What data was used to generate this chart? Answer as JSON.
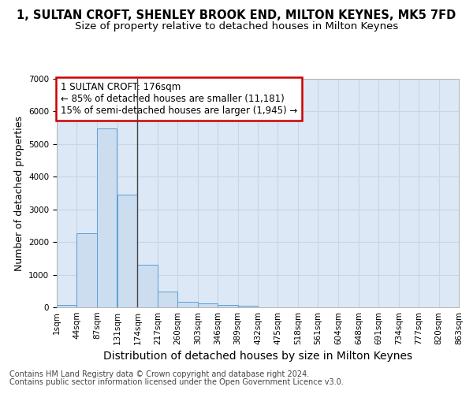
{
  "title": "1, SULTAN CROFT, SHENLEY BROOK END, MILTON KEYNES, MK5 7FD",
  "subtitle": "Size of property relative to detached houses in Milton Keynes",
  "xlabel": "Distribution of detached houses by size in Milton Keynes",
  "ylabel": "Number of detached properties",
  "footnote1": "Contains HM Land Registry data © Crown copyright and database right 2024.",
  "footnote2": "Contains public sector information licensed under the Open Government Licence v3.0.",
  "annotation_line1": "1 SULTAN CROFT: 176sqm",
  "annotation_line2": "← 85% of detached houses are smaller (11,181)",
  "annotation_line3": "15% of semi-detached houses are larger (1,945) →",
  "bin_starts": [
    1,
    44,
    87,
    131,
    174,
    217,
    260,
    303,
    346,
    389,
    432,
    475,
    518,
    561,
    604,
    648,
    691,
    734,
    777,
    820
  ],
  "bin_labels": [
    "1sqm",
    "44sqm",
    "87sqm",
    "131sqm",
    "174sqm",
    "217sqm",
    "260sqm",
    "303sqm",
    "346sqm",
    "389sqm",
    "432sqm",
    "475sqm",
    "518sqm",
    "561sqm",
    "604sqm",
    "648sqm",
    "691sqm",
    "734sqm",
    "777sqm",
    "820sqm",
    "863sqm"
  ],
  "counts": [
    80,
    2270,
    5480,
    3460,
    1310,
    480,
    160,
    110,
    75,
    40,
    0,
    0,
    0,
    0,
    0,
    0,
    0,
    0,
    0,
    0
  ],
  "bar_color": "#ccddf0",
  "bar_edge_color": "#5a9fd4",
  "vline_color": "#444444",
  "vline_x": 174,
  "ylim": [
    0,
    7000
  ],
  "yticks": [
    0,
    1000,
    2000,
    3000,
    4000,
    5000,
    6000,
    7000
  ],
  "grid_color": "#c8d4e8",
  "bg_color": "#dce8f5",
  "annotation_box_color": "#ffffff",
  "annotation_box_edge": "#cc0000",
  "title_fontsize": 10.5,
  "subtitle_fontsize": 9.5,
  "xlabel_fontsize": 10,
  "ylabel_fontsize": 9,
  "tick_fontsize": 7.5,
  "annotation_fontsize": 8.5,
  "footnote_fontsize": 7
}
